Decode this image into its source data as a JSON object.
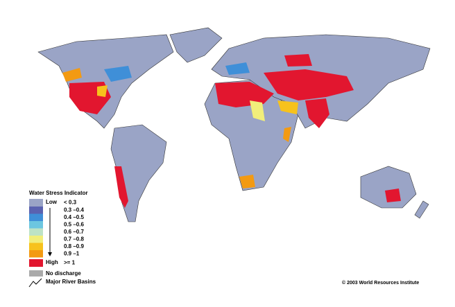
{
  "legend": {
    "title": "Water Stress Indicator",
    "low": "Low",
    "high": "High",
    "items": [
      {
        "label": "< 0.3",
        "color": "#9aa4c6"
      },
      {
        "label": "0.3 –0.4",
        "color": "#5a62b0"
      },
      {
        "label": "0.4 –0.5",
        "color": "#3f8fd8"
      },
      {
        "label": "0.5 –0.6",
        "color": "#6cc6e0"
      },
      {
        "label": "0.6 –0.7",
        "color": "#bde3c6"
      },
      {
        "label": "0.7 –0.8",
        "color": "#f1ee7a"
      },
      {
        "label": "0.8 –0.9",
        "color": "#f7c21c"
      },
      {
        "label": "0.9 –1",
        "color": "#f39a12"
      },
      {
        "label": ">= 1",
        "color": "#e2162f"
      }
    ],
    "no_discharge": {
      "label": "No discharge",
      "color": "#aaaaaa"
    },
    "basins": "Major River Basins"
  },
  "credit": "© 2003 World Resources Institute"
}
